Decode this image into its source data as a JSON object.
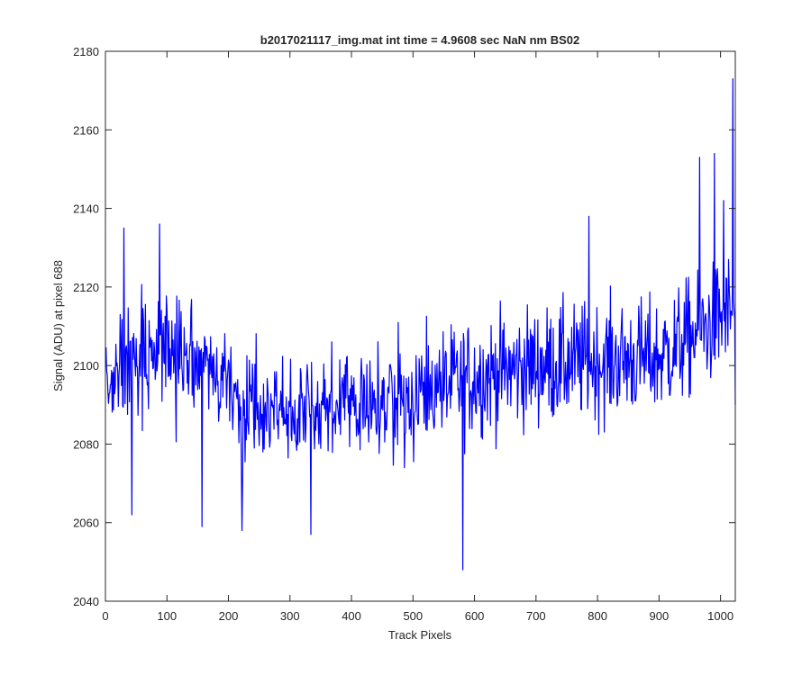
{
  "chart_data": {
    "type": "line",
    "title": "b2017021117_img.mat int time = 4.9608 sec  NaN nm BS02",
    "xlabel": "Track Pixels",
    "ylabel": "Signal (ADU) at pixel 688",
    "xlim": [
      0,
      1024
    ],
    "ylim": [
      2040,
      2180
    ],
    "xticks": [
      0,
      100,
      200,
      300,
      400,
      500,
      600,
      700,
      800,
      900,
      1000
    ],
    "yticks": [
      2040,
      2060,
      2080,
      2100,
      2120,
      2140,
      2160,
      2180
    ],
    "grid": false,
    "legend": "none",
    "series": [
      {
        "color": "#0000ff",
        "x_start": 1,
        "x_step": 1,
        "n_points": 1024,
        "baseline_trend": [
          {
            "x": 0,
            "y": 2096
          },
          {
            "x": 100,
            "y": 2105
          },
          {
            "x": 200,
            "y": 2093
          },
          {
            "x": 300,
            "y": 2088
          },
          {
            "x": 400,
            "y": 2090
          },
          {
            "x": 500,
            "y": 2092
          },
          {
            "x": 600,
            "y": 2097
          },
          {
            "x": 700,
            "y": 2100
          },
          {
            "x": 800,
            "y": 2101
          },
          {
            "x": 900,
            "y": 2102
          },
          {
            "x": 1000,
            "y": 2112
          },
          {
            "x": 1024,
            "y": 2114
          }
        ],
        "noise_amplitude": 10,
        "notable_points": [
          {
            "x": 30,
            "y": 2135
          },
          {
            "x": 43,
            "y": 2062
          },
          {
            "x": 88,
            "y": 2136
          },
          {
            "x": 157,
            "y": 2059
          },
          {
            "x": 222,
            "y": 2058
          },
          {
            "x": 334,
            "y": 2057
          },
          {
            "x": 581,
            "y": 2048
          },
          {
            "x": 786,
            "y": 2138
          },
          {
            "x": 966,
            "y": 2153
          },
          {
            "x": 990,
            "y": 2154
          },
          {
            "x": 1005,
            "y": 2142
          },
          {
            "x": 1020,
            "y": 2173
          },
          {
            "x": 1024,
            "y": 2090
          }
        ]
      }
    ]
  }
}
